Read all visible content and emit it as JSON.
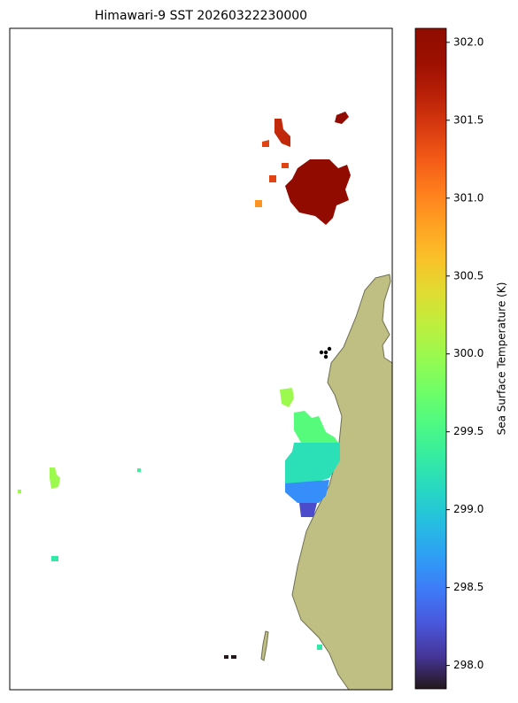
{
  "map": {
    "title": "Himawari-9 SST 20260322230000",
    "colorbar": {
      "label": "Sea Surface Temperature (K)",
      "lim": [
        297.85,
        302.09
      ],
      "ticks": [
        {
          "value": 298,
          "label": "298.0"
        },
        298.5,
        {
          "value": 299,
          "label": "299.0"
        },
        299.5,
        {
          "value": 300,
          "label": "300.0"
        },
        300.5,
        {
          "value": 301,
          "label": "301.0"
        },
        301.5,
        {
          "value": 302,
          "label": "302.0"
        }
      ]
    },
    "sst_patches": [
      302.0,
      302.0,
      301.6,
      301.4,
      300.9,
      300.0,
      299.6,
      299.2,
      298.6,
      298.2,
      300.0,
      299.3,
      299.3,
      297.8,
      300.0,
      299.4
    ]
  }
}
